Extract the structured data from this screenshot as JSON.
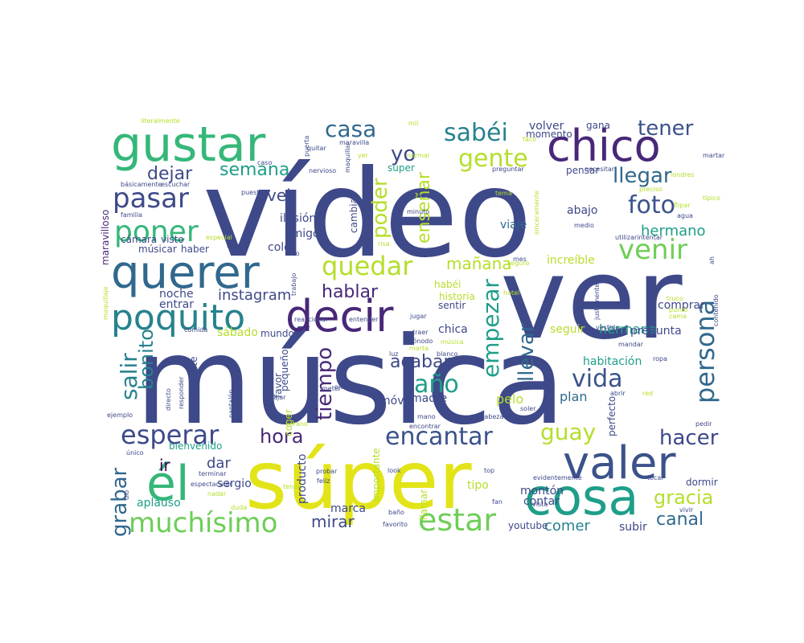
{
  "palette": [
    "#440154",
    "#482878",
    "#3e4989",
    "#31688e",
    "#26828e",
    "#1f9e89",
    "#35b779",
    "#6ece58",
    "#b5de2b",
    "#fde725"
  ],
  "words": [
    {
      "text": "vídeo",
      "c": "#3e4989"
    },
    {
      "text": "música",
      "c": "#3e4989"
    },
    {
      "text": "ver",
      "c": "#3e4989"
    },
    {
      "text": "súper",
      "c": "#e2e418"
    },
    {
      "text": "querer",
      "c": "#31688e"
    },
    {
      "text": "gustar",
      "c": "#35b779"
    },
    {
      "text": "chico",
      "c": "#482878"
    },
    {
      "text": "decir",
      "c": "#482878"
    },
    {
      "text": "cosa",
      "c": "#1f9e89"
    },
    {
      "text": "valer",
      "c": "#3b528b"
    },
    {
      "text": "él",
      "c": "#35b779"
    },
    {
      "text": "poquito",
      "c": "#26828e"
    },
    {
      "text": "pasar",
      "c": "#3e4989"
    },
    {
      "text": "poner",
      "c": "#35b779"
    },
    {
      "text": "muchísimo",
      "c": "#6ece58"
    },
    {
      "text": "estar",
      "c": "#6ece58"
    },
    {
      "text": "esperar",
      "c": "#3e4989"
    },
    {
      "text": "quedar",
      "c": "#b5de2b"
    },
    {
      "text": "casa",
      "c": "#31688e"
    },
    {
      "text": "sabéi",
      "c": "#26828e"
    },
    {
      "text": "yo",
      "c": "#3e4989"
    },
    {
      "text": "gente",
      "c": "#b5de2b"
    },
    {
      "text": "tener",
      "c": "#3b528b"
    },
    {
      "text": "llegar",
      "c": "#31688e"
    },
    {
      "text": "foto",
      "c": "#3b528b"
    },
    {
      "text": "venir",
      "c": "#6ece58"
    },
    {
      "text": "persona",
      "c": "#31688e"
    },
    {
      "text": "encantar",
      "c": "#3b528b"
    },
    {
      "text": "vida",
      "c": "#3b528b"
    },
    {
      "text": "año",
      "c": "#1f9e89"
    },
    {
      "text": "guay",
      "c": "#b5de2b"
    },
    {
      "text": "hacer",
      "c": "#3e4989"
    },
    {
      "text": "gracia",
      "c": "#b5de2b"
    },
    {
      "text": "canal",
      "c": "#31688e"
    },
    {
      "text": "tiempo",
      "c": "#482878"
    },
    {
      "text": "empezar",
      "c": "#1f9e89"
    },
    {
      "text": "llevar",
      "c": "#31688e"
    },
    {
      "text": "hora",
      "c": "#482878"
    },
    {
      "text": "salir",
      "c": "#26828e"
    },
    {
      "text": "bonito",
      "c": "#26828e"
    },
    {
      "text": "grabar",
      "c": "#31688e"
    },
    {
      "text": "mañana",
      "c": "#b5de2b"
    },
    {
      "text": "acabar",
      "c": "#3e4989"
    },
    {
      "text": "hablar",
      "c": "#482878"
    },
    {
      "text": "poder",
      "c": "#b5de2b"
    },
    {
      "text": "enseñar",
      "c": "#b5de2b"
    },
    {
      "text": "dejar",
      "c": "#3e4989"
    },
    {
      "text": "semana",
      "c": "#1f9e89"
    },
    {
      "text": "vei",
      "c": "#3e4989"
    },
    {
      "text": "hermano",
      "c": "#1f9e89"
    },
    {
      "text": "instagram",
      "c": "#3e4989"
    },
    {
      "text": "mirar",
      "c": "#3e4989"
    },
    {
      "text": "dar",
      "c": "#3e4989"
    },
    {
      "text": "ir",
      "c": "#440154"
    },
    {
      "text": "comer",
      "c": "#26828e"
    },
    {
      "text": "pelo",
      "c": "#b5de2b"
    },
    {
      "text": "madre",
      "c": "#3e4989"
    },
    {
      "text": "plan",
      "c": "#31688e"
    },
    {
      "text": "hermana",
      "c": "#1f9e89"
    },
    {
      "text": "pregunta",
      "c": "#3e4989"
    },
    {
      "text": "seguir",
      "c": "#b5de2b"
    },
    {
      "text": "habitación",
      "c": "#1f9e89"
    },
    {
      "text": "comprar",
      "c": "#3e4989"
    },
    {
      "text": "increíble",
      "c": "#b5de2b"
    },
    {
      "text": "viaje",
      "c": "#31688e"
    },
    {
      "text": "abajo",
      "c": "#3e4989"
    },
    {
      "text": "ilusión",
      "c": "#3e4989"
    },
    {
      "text": "amigo",
      "c": "#3e4989"
    },
    {
      "text": "color",
      "c": "#3e4989"
    },
    {
      "text": "noche",
      "c": "#3e4989"
    },
    {
      "text": "entrar",
      "c": "#3e4989"
    },
    {
      "text": "chica",
      "c": "#3e4989"
    },
    {
      "text": "móvil",
      "c": "#3e4989"
    },
    {
      "text": "favor",
      "c": "#3e4989"
    },
    {
      "text": "cara",
      "c": "#3e4989"
    },
    {
      "text": "mundo",
      "c": "#3e4989"
    },
    {
      "text": "sábado",
      "c": "#b5de2b"
    },
    {
      "text": "bienvenido",
      "c": "#1f9e89"
    },
    {
      "text": "sergio",
      "c": "#3e4989"
    },
    {
      "text": "aplauso",
      "c": "#1f9e89"
    },
    {
      "text": "marca",
      "c": "#3e4989"
    },
    {
      "text": "montón",
      "c": "#3e4989"
    },
    {
      "text": "contar",
      "c": "#3e4989"
    },
    {
      "text": "dormir",
      "c": "#3e4989"
    },
    {
      "text": "subir",
      "c": "#3e4989"
    },
    {
      "text": "youtube",
      "c": "#3e4989"
    },
    {
      "text": "tipo",
      "c": "#b5de2b"
    },
    {
      "text": "llamar",
      "c": "#b5de2b"
    },
    {
      "text": "importante",
      "c": "#b5de2b"
    },
    {
      "text": "producto",
      "c": "#3e4989"
    },
    {
      "text": "volver",
      "c": "#3e4989"
    },
    {
      "text": "momento",
      "c": "#3e4989"
    },
    {
      "text": "gana",
      "c": "#3e4989"
    },
    {
      "text": "pensar",
      "c": "#3e4989"
    },
    {
      "text": "super",
      "c": "#1f9e89"
    },
    {
      "text": "cambiar",
      "c": "#3e4989"
    },
    {
      "text": "sentir",
      "c": "#3e4989"
    },
    {
      "text": "habéi",
      "c": "#b5de2b"
    },
    {
      "text": "historia",
      "c": "#b5de2b"
    },
    {
      "text": "músicar",
      "c": "#3e4989"
    },
    {
      "text": "haber",
      "c": "#3e4989"
    },
    {
      "text": "cámara",
      "c": "#3e4989"
    },
    {
      "text": "visto",
      "c": "#3e4989"
    },
    {
      "text": "realmente",
      "c": "#3e4989"
    },
    {
      "text": "pequeño",
      "c": "#3e4989"
    },
    {
      "text": "coger",
      "c": "#b5de2b"
    },
    {
      "text": "maravilloso",
      "c": "#482878"
    },
    {
      "text": "perfecto",
      "c": "#3e4989"
    },
    {
      "text": "literalmente",
      "c": "#b5de2b"
    },
    {
      "text": "mil",
      "c": "#b5de2b"
    },
    {
      "text": "fácil",
      "c": "#b5de2b"
    },
    {
      "text": "maravilla",
      "c": "#3e4989"
    },
    {
      "text": "quitar",
      "c": "#3e4989"
    },
    {
      "text": "puerta",
      "c": "#3e4989"
    },
    {
      "text": "yer",
      "c": "#b5de2b"
    },
    {
      "text": "normal",
      "c": "#b5de2b"
    },
    {
      "text": "nervioso",
      "c": "#3e4989"
    },
    {
      "text": "básicamente",
      "c": "#3e4989"
    },
    {
      "text": "escuchar",
      "c": "#3e4989"
    },
    {
      "text": "puesto",
      "c": "#3e4989"
    },
    {
      "text": "allá",
      "c": "#3e4989"
    },
    {
      "text": "mirad",
      "c": "#3e4989"
    },
    {
      "text": "minuto",
      "c": "#3e4989"
    },
    {
      "text": "medio",
      "c": "#3e4989"
    },
    {
      "text": "preguntar",
      "c": "#3e4989"
    },
    {
      "text": "necesitar",
      "c": "#3e4989"
    },
    {
      "text": "preciso",
      "c": "#b5de2b"
    },
    {
      "text": "flipar",
      "c": "#b5de2b"
    },
    {
      "text": "agua",
      "c": "#3e4989"
    },
    {
      "text": "típico",
      "c": "#b5de2b"
    },
    {
      "text": "martar",
      "c": "#3e4989"
    },
    {
      "text": "utilizarintentar",
      "c": "#3e4989"
    },
    {
      "text": "familia",
      "c": "#3e4989"
    },
    {
      "text": "especial",
      "c": "#b5de2b"
    },
    {
      "text": "idea",
      "c": "#3e4989"
    },
    {
      "text": "sitio",
      "c": "#3e4989"
    },
    {
      "text": "risa",
      "c": "#b5de2b"
    },
    {
      "text": "seguro",
      "c": "#b5de2b"
    },
    {
      "text": "mes",
      "c": "#3e4989"
    },
    {
      "text": "trabajo",
      "c": "#3e4989"
    },
    {
      "text": "hotel",
      "c": "#b5de2b"
    },
    {
      "text": "jugar",
      "c": "#3e4989"
    },
    {
      "text": "traer",
      "c": "#3e4989"
    },
    {
      "text": "cónodo",
      "c": "#3e4989"
    },
    {
      "text": "marta",
      "c": "#b5de2b"
    },
    {
      "text": "luz",
      "c": "#3e4989"
    },
    {
      "text": "blanco",
      "c": "#3e4989"
    },
    {
      "text": "mandar",
      "c": "#3e4989"
    },
    {
      "text": "ropa",
      "c": "#3e4989"
    },
    {
      "text": "vestido",
      "c": "#3e4989"
    },
    {
      "text": "comida",
      "c": "#3e4989"
    },
    {
      "text": "ejemplo",
      "c": "#3e4989"
    },
    {
      "text": "directo",
      "c": "#3e4989"
    },
    {
      "text": "responder",
      "c": "#3e4989"
    },
    {
      "text": "pantalón",
      "c": "#3e4989"
    },
    {
      "text": "ojo",
      "c": "#3e4989"
    },
    {
      "text": "meter",
      "c": "#3e4989"
    },
    {
      "text": "bajar",
      "c": "#3e4989"
    },
    {
      "text": "verano",
      "c": "#b5de2b"
    },
    {
      "text": "mano",
      "c": "#3e4989"
    },
    {
      "text": "encontrar",
      "c": "#3e4989"
    },
    {
      "text": "cabeza",
      "c": "#3e4989"
    },
    {
      "text": "soler",
      "c": "#3e4989"
    },
    {
      "text": "abrir",
      "c": "#3e4989"
    },
    {
      "text": "red",
      "c": "#b5de2b"
    },
    {
      "text": "pedir",
      "c": "#3e4989"
    },
    {
      "text": "único",
      "c": "#3e4989"
    },
    {
      "text": "terminar",
      "c": "#3e4989"
    },
    {
      "text": "espectacular",
      "c": "#3e4989"
    },
    {
      "text": "probar",
      "c": "#3e4989"
    },
    {
      "text": "feliz",
      "c": "#3e4989"
    },
    {
      "text": "look",
      "c": "#3e4989"
    },
    {
      "text": "top",
      "c": "#3e4989"
    },
    {
      "text": "evidentemente",
      "c": "#3e4989"
    },
    {
      "text": "tocar",
      "c": "#3e4989"
    },
    {
      "text": "vivir",
      "c": "#3e4989"
    },
    {
      "text": "fan",
      "c": "#3e4989"
    },
    {
      "text": "vista",
      "c": "#3e4989"
    },
    {
      "text": "baño",
      "c": "#3e4989"
    },
    {
      "text": "favorito",
      "c": "#3e4989"
    },
    {
      "text": "duda",
      "c": "#b5de2b"
    },
    {
      "text": "tenéi",
      "c": "#b5de2b"
    },
    {
      "text": "nadar",
      "c": "#b5de2b"
    },
    {
      "text": "dio",
      "c": "#3e4989"
    },
    {
      "text": "reaccionar",
      "c": "#3e4989"
    },
    {
      "text": "entender",
      "c": "#3e4989"
    },
    {
      "text": "caso",
      "c": "#3e4989"
    },
    {
      "text": "maquillar",
      "c": "#3e4989"
    },
    {
      "text": "maquillaje",
      "c": "#b5de2b"
    },
    {
      "text": "sinceramente",
      "c": "#b5de2b"
    },
    {
      "text": "tema",
      "c": "#b5de2b"
    },
    {
      "text": "justamente",
      "c": "#3e4989"
    },
    {
      "text": "truco",
      "c": "#b5de2b"
    },
    {
      "text": "punto",
      "c": "#b5de2b"
    },
    {
      "text": "cama",
      "c": "#b5de2b"
    },
    {
      "text": "contenido",
      "c": "#3e4989"
    },
    {
      "text": "londres",
      "c": "#b5de2b"
    },
    {
      "text": "ah",
      "c": "#3e4989"
    },
    {
      "text": "música",
      "c": "#b5de2b"
    }
  ]
}
